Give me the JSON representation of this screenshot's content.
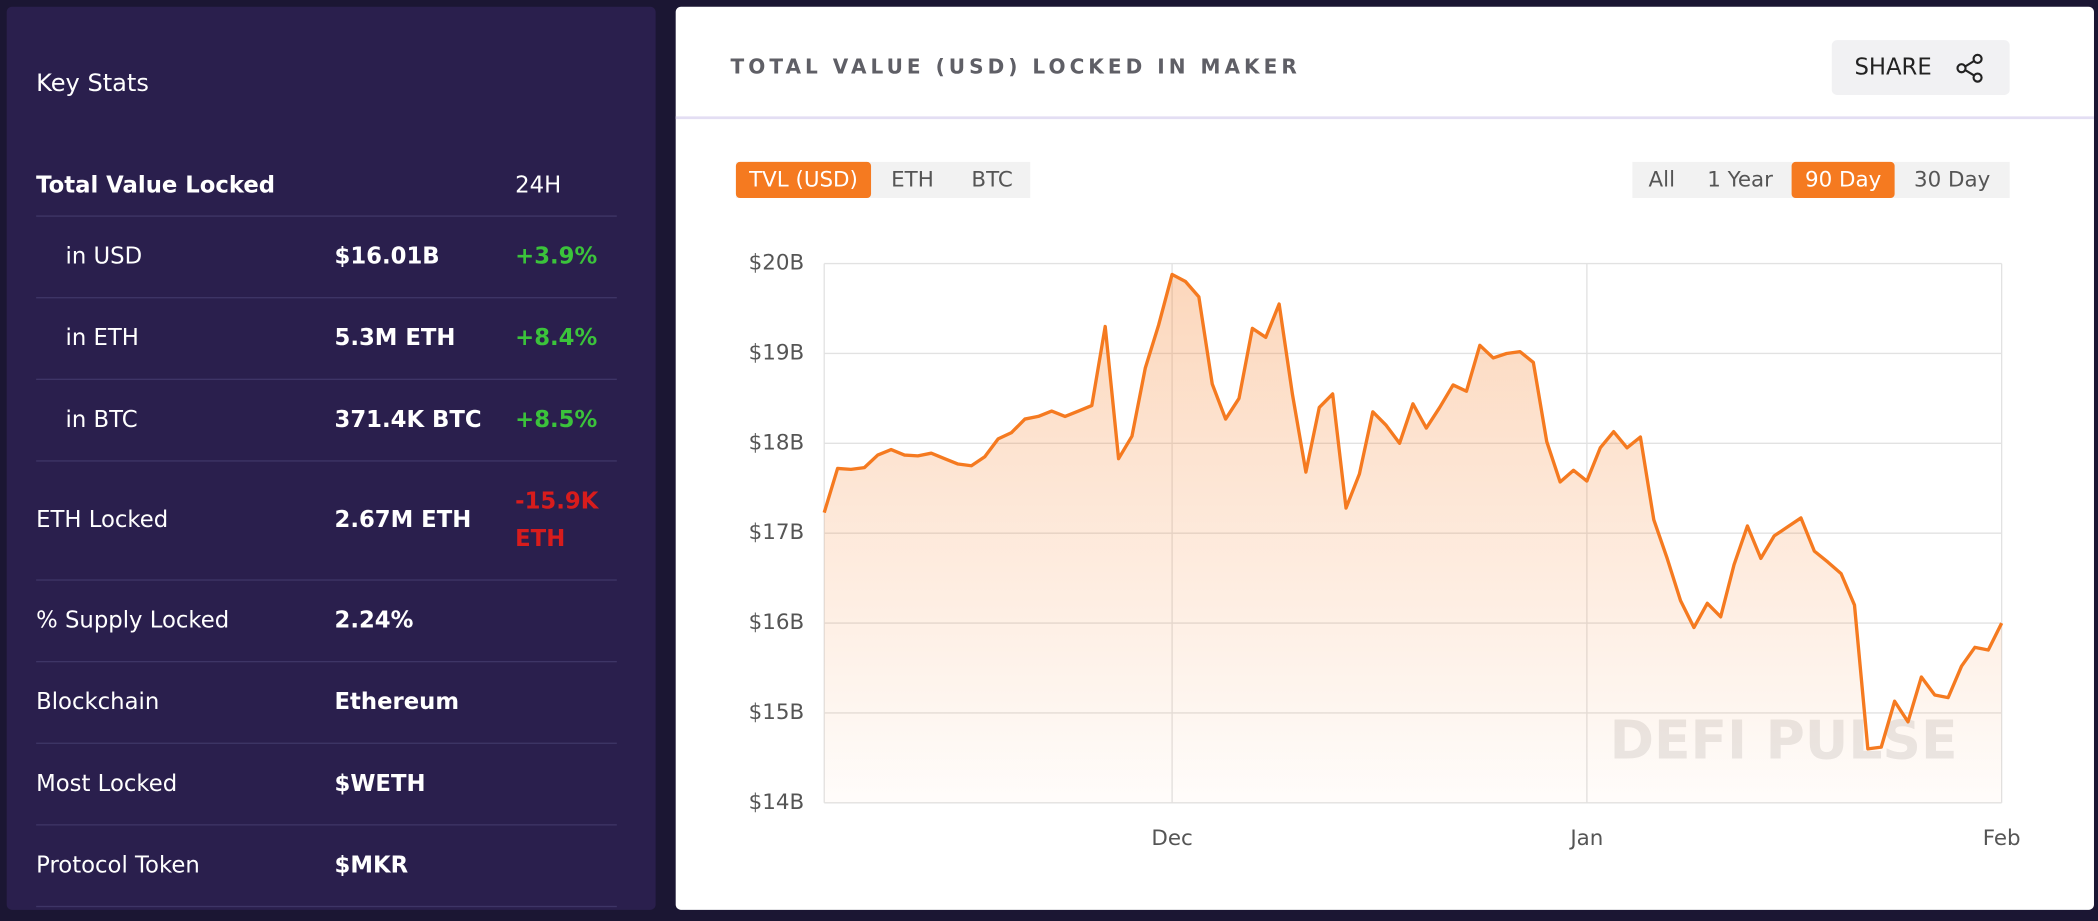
{
  "key_stats": {
    "title": "Key Stats",
    "header": {
      "label": "Total Value Locked",
      "period": "24H"
    },
    "rows": [
      {
        "label": "in USD",
        "value": "$16.01B",
        "change": "+3.9%",
        "sub": true
      },
      {
        "label": "in ETH",
        "value": "5.3M ETH",
        "change": "+8.4%",
        "sub": true
      },
      {
        "label": "in BTC",
        "value": "371.4K BTC",
        "change": "+8.5%",
        "sub": true
      },
      {
        "label": "ETH Locked",
        "value": "2.67M ETH",
        "change": "-15.9K ETH"
      },
      {
        "label": "% Supply Locked",
        "value": "2.24%"
      },
      {
        "label": "Blockchain",
        "value": "Ethereum"
      },
      {
        "label": "Most Locked",
        "value": "$WETH"
      },
      {
        "label": "Protocol Token",
        "value": "$MKR"
      }
    ]
  },
  "panel": {
    "title": "TOTAL VALUE (USD) LOCKED IN MAKER",
    "share": "SHARE",
    "units": [
      {
        "label": "TVL (USD)",
        "active": true
      },
      {
        "label": "ETH"
      },
      {
        "label": "BTC"
      }
    ],
    "ranges": [
      {
        "label": "All"
      },
      {
        "label": "1 Year"
      },
      {
        "label": "90 Day",
        "active": true
      },
      {
        "label": "30 Day"
      }
    ],
    "watermark": "DEFI PULSE"
  },
  "chart_data": {
    "type": "line",
    "color": "#f57a20",
    "grid": true,
    "categories": [
      null,
      null,
      null,
      null,
      null,
      null,
      null,
      null,
      null,
      null,
      null,
      null,
      null,
      null,
      null,
      null,
      null,
      null,
      null,
      null,
      null,
      null,
      null,
      null,
      null,
      null,
      "Dec",
      null,
      null,
      null,
      null,
      null,
      null,
      null,
      null,
      null,
      null,
      null,
      null,
      null,
      null,
      null,
      null,
      null,
      null,
      null,
      null,
      null,
      null,
      null,
      null,
      null,
      null,
      null,
      null,
      null,
      null,
      "Jan",
      null,
      null,
      null,
      null,
      null,
      null,
      null,
      null,
      null,
      null,
      null,
      null,
      null,
      null,
      null,
      null,
      null,
      null,
      null,
      null,
      null,
      null,
      null,
      null,
      null,
      null,
      null,
      null,
      null,
      null,
      "Feb"
    ],
    "values": [
      17.23,
      17.72,
      17.71,
      17.73,
      17.87,
      17.93,
      17.87,
      17.86,
      17.89,
      17.83,
      17.77,
      17.75,
      17.85,
      18.05,
      18.12,
      18.27,
      18.3,
      18.36,
      18.3,
      18.36,
      18.42,
      19.3,
      17.83,
      18.08,
      18.84,
      19.32,
      19.88,
      19.8,
      19.63,
      18.66,
      18.27,
      18.5,
      19.28,
      19.18,
      19.55,
      18.54,
      17.68,
      18.4,
      18.55,
      17.28,
      17.66,
      18.35,
      18.2,
      18.0,
      18.44,
      18.17,
      18.4,
      18.65,
      18.58,
      19.09,
      18.95,
      19.0,
      19.02,
      18.9,
      18.02,
      17.57,
      17.7,
      17.58,
      17.95,
      18.13,
      17.95,
      18.07,
      17.15,
      16.72,
      16.25,
      15.95,
      16.22,
      16.07,
      16.65,
      17.08,
      16.72,
      16.97,
      17.07,
      17.17,
      16.8,
      16.68,
      16.55,
      16.2,
      14.6,
      14.62,
      15.13,
      14.9,
      15.4,
      15.2,
      15.17,
      15.52,
      15.73,
      15.7,
      16.0
    ],
    "ylim": [
      14,
      20
    ],
    "yticks": [
      {
        "value": 14,
        "label": "$14B"
      },
      {
        "value": 15,
        "label": "$15B"
      },
      {
        "value": 16,
        "label": "$16B"
      },
      {
        "value": 17,
        "label": "$17B"
      },
      {
        "value": 18,
        "label": "$18B"
      },
      {
        "value": 19,
        "label": "$19B"
      },
      {
        "value": 20,
        "label": "$20B"
      }
    ]
  }
}
